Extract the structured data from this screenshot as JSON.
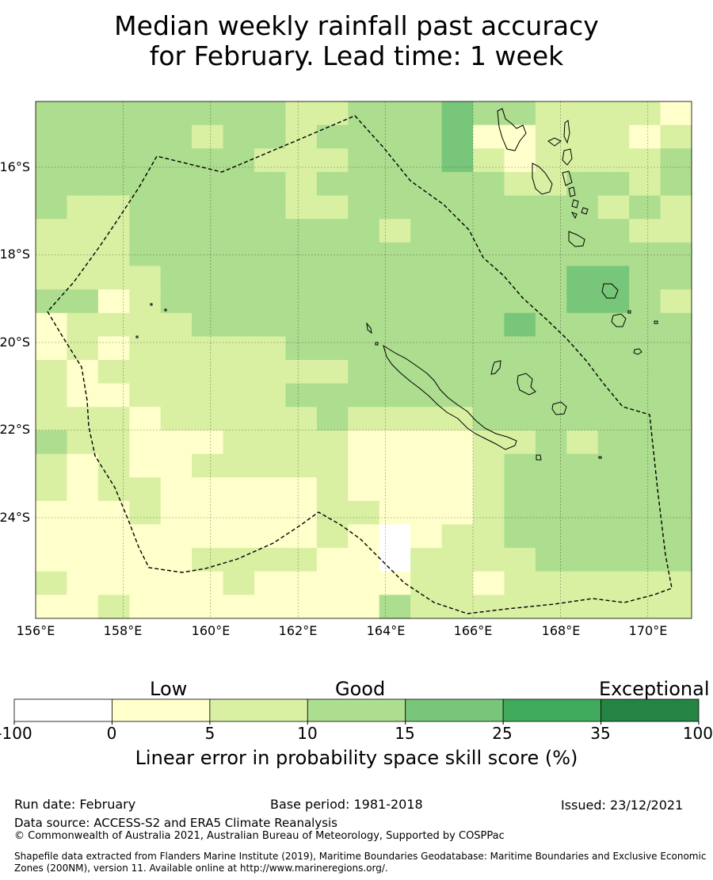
{
  "title_line1": "Median weekly rainfall past accuracy",
  "title_line2": "for February. Lead time: 1 week",
  "map": {
    "lat_labels": [
      "16°S",
      "18°S",
      "20°S",
      "22°S",
      "24°S"
    ],
    "lon_labels": [
      "156°E",
      "158°E",
      "160°E",
      "162°E",
      "164°E",
      "166°E",
      "168°E",
      "170°E"
    ],
    "grid_lat_rows_note": "",
    "skill_grid": [
      [
        3,
        3,
        3,
        3,
        3,
        3,
        3,
        3,
        2,
        2,
        3,
        3,
        3,
        4,
        3,
        3,
        2,
        2,
        2,
        2,
        1
      ],
      [
        3,
        3,
        3,
        3,
        3,
        2,
        3,
        3,
        2,
        3,
        3,
        3,
        3,
        4,
        1,
        1,
        2,
        2,
        2,
        1,
        2
      ],
      [
        3,
        3,
        3,
        3,
        3,
        3,
        3,
        2,
        2,
        2,
        3,
        3,
        3,
        4,
        2,
        1,
        2,
        2,
        2,
        2,
        3
      ],
      [
        3,
        3,
        3,
        3,
        3,
        3,
        3,
        3,
        2,
        3,
        3,
        3,
        3,
        3,
        3,
        2,
        2,
        3,
        3,
        2,
        3
      ],
      [
        3,
        2,
        2,
        3,
        3,
        3,
        3,
        3,
        2,
        2,
        3,
        3,
        3,
        3,
        3,
        3,
        3,
        3,
        2,
        3,
        2
      ],
      [
        2,
        2,
        2,
        3,
        3,
        3,
        3,
        3,
        3,
        3,
        3,
        2,
        3,
        3,
        3,
        3,
        3,
        3,
        3,
        2,
        2
      ],
      [
        2,
        2,
        2,
        3,
        3,
        3,
        3,
        3,
        3,
        3,
        3,
        3,
        3,
        3,
        3,
        3,
        3,
        3,
        3,
        3,
        3
      ],
      [
        2,
        2,
        2,
        2,
        3,
        3,
        3,
        3,
        3,
        3,
        3,
        3,
        3,
        3,
        3,
        3,
        3,
        4,
        4,
        3,
        3
      ],
      [
        3,
        3,
        1,
        2,
        3,
        3,
        3,
        3,
        3,
        3,
        3,
        3,
        3,
        3,
        3,
        3,
        3,
        4,
        4,
        3,
        2
      ],
      [
        1,
        2,
        2,
        2,
        2,
        3,
        3,
        3,
        3,
        3,
        3,
        3,
        3,
        3,
        3,
        4,
        3,
        3,
        3,
        3,
        3
      ],
      [
        1,
        2,
        1,
        2,
        2,
        2,
        2,
        2,
        3,
        3,
        3,
        3,
        3,
        3,
        3,
        3,
        3,
        3,
        3,
        3,
        3
      ],
      [
        2,
        1,
        2,
        2,
        2,
        2,
        2,
        2,
        2,
        2,
        3,
        3,
        3,
        3,
        3,
        3,
        3,
        3,
        3,
        3,
        3
      ],
      [
        2,
        1,
        1,
        2,
        2,
        2,
        2,
        2,
        3,
        3,
        3,
        3,
        3,
        3,
        3,
        3,
        3,
        3,
        3,
        3,
        3
      ],
      [
        2,
        2,
        2,
        1,
        2,
        2,
        2,
        2,
        2,
        3,
        2,
        2,
        2,
        2,
        3,
        3,
        3,
        3,
        3,
        3,
        3
      ],
      [
        3,
        2,
        2,
        1,
        1,
        1,
        2,
        2,
        2,
        2,
        1,
        1,
        1,
        1,
        2,
        2,
        3,
        2,
        3,
        3,
        3
      ],
      [
        2,
        1,
        2,
        1,
        1,
        2,
        2,
        2,
        2,
        2,
        1,
        1,
        1,
        1,
        2,
        3,
        3,
        3,
        3,
        3,
        3
      ],
      [
        2,
        1,
        2,
        2,
        1,
        1,
        1,
        1,
        1,
        2,
        1,
        1,
        1,
        1,
        2,
        3,
        3,
        3,
        3,
        3,
        3
      ],
      [
        1,
        1,
        1,
        2,
        1,
        1,
        1,
        1,
        1,
        2,
        2,
        1,
        1,
        1,
        2,
        3,
        3,
        3,
        3,
        3,
        3
      ],
      [
        1,
        1,
        1,
        1,
        1,
        1,
        1,
        1,
        1,
        2,
        1,
        0,
        1,
        2,
        2,
        3,
        3,
        3,
        3,
        3,
        3
      ],
      [
        1,
        1,
        1,
        1,
        1,
        2,
        2,
        2,
        2,
        1,
        1,
        0,
        2,
        2,
        2,
        2,
        3,
        3,
        3,
        3,
        3
      ],
      [
        2,
        1,
        1,
        1,
        1,
        1,
        2,
        1,
        1,
        1,
        1,
        1,
        2,
        2,
        1,
        2,
        2,
        2,
        2,
        2,
        2
      ],
      [
        1,
        1,
        2,
        1,
        1,
        1,
        1,
        1,
        1,
        1,
        1,
        3,
        2,
        2,
        2,
        2,
        2,
        2,
        2,
        2,
        2
      ]
    ]
  },
  "colorbar": {
    "category_labels": [
      "Low",
      "Good",
      "Exceptional"
    ],
    "tick_labels": [
      "-100",
      "0",
      "5",
      "10",
      "15",
      "25",
      "35",
      "100"
    ],
    "colors": [
      "#ffffff",
      "#ffffcc",
      "#d9f0a3",
      "#addd8e",
      "#78c679",
      "#41ab5d",
      "#238443"
    ],
    "title": "Linear error in probability space skill score (%)"
  },
  "footer": {
    "run_date": "Run date: February",
    "base_period": "Base period: 1981-2018",
    "issued": "Issued: 23/12/2021",
    "data_source": "Data source: ACCESS-S2 and ERA5 Climate Reanalysis",
    "copyright": "© Commonwealth of Australia 2021, Australian Bureau of Meteorology, Supported by COSPPac",
    "shapefile": "Shapefile data extracted from Flanders Marine Institute (2019), Maritime Boundaries Geodatabase: Maritime Boundaries and Exclusive Economic Zones (200NM), version 11. Available online at http://www.marineregions.org/."
  }
}
